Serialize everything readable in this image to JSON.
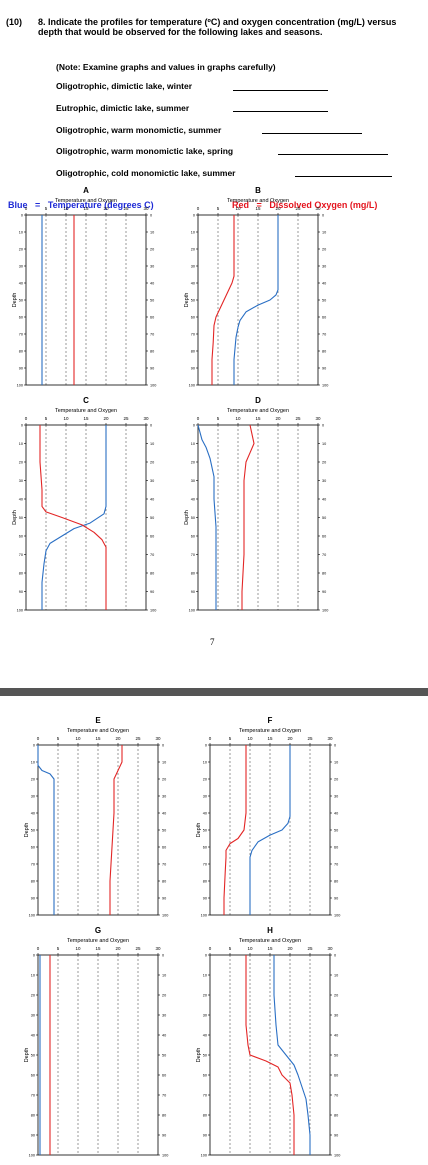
{
  "question": {
    "number": "(10)",
    "text": "8.  Indicate the profiles for temperature (ºC) and oxygen concentration (mg/L) versus depth that would be observed for the following lakes and seasons.",
    "note": "(Note: Examine graphs and values in graphs carefully)",
    "items": [
      "Oligotrophic, dimictic lake, winter",
      "Eutrophic, dimictic lake, summer",
      "Oligotrophic, warm monomictic, summer",
      "Oligotrophic, warm monomictic lake, spring",
      "Oligotrophic, cold monomictic lake, summer"
    ]
  },
  "legend": {
    "blue_label": "Blue",
    "blue_eq": "=",
    "blue_text": "Temperature (degrees C)",
    "red_label": "Red",
    "red_eq": "=",
    "red_text": "Dissolved Oxygen (mg/L)"
  },
  "page_number": "7",
  "colors": {
    "temperature": "#2a6fc4",
    "oxygen": "#e32626",
    "legend_blue": "#1f2bd6",
    "legend_red": "#e4141e",
    "separator": "#555555"
  },
  "chart_data": [
    {
      "letter": "A",
      "type": "line",
      "title": "Temperature and Oxygen",
      "ylabel": "Depth",
      "xlim": [
        0,
        30
      ],
      "ylim": [
        100,
        0
      ],
      "xticks": [
        0,
        5,
        10,
        15,
        20,
        25,
        30
      ],
      "yticks": [
        0,
        10,
        20,
        30,
        40,
        50,
        60,
        70,
        80,
        90,
        100
      ],
      "grid": "dashed vertical",
      "series": [
        {
          "var": "temperature",
          "points": [
            [
              4,
              0
            ],
            [
              4,
              100
            ]
          ]
        },
        {
          "var": "oxygen",
          "points": [
            [
              12,
              0
            ],
            [
              12,
              100
            ]
          ]
        }
      ]
    },
    {
      "letter": "B",
      "type": "line",
      "title": "Temperature and Oxygen",
      "ylabel": "Depth",
      "xlim": [
        0,
        30
      ],
      "ylim": [
        100,
        0
      ],
      "xticks": [
        0,
        5,
        10,
        15,
        20,
        25,
        30
      ],
      "yticks": [
        0,
        10,
        20,
        30,
        40,
        50,
        60,
        70,
        80,
        90,
        100
      ],
      "grid": "dashed vertical",
      "series": [
        {
          "var": "temperature",
          "points": [
            [
              20,
              0
            ],
            [
              20,
              44
            ],
            [
              19.5,
              47
            ],
            [
              18,
              50
            ],
            [
              15,
              53
            ],
            [
              12,
              57
            ],
            [
              10.5,
              62
            ],
            [
              10,
              66
            ],
            [
              9.5,
              72
            ],
            [
              9,
              85
            ],
            [
              9,
              100
            ]
          ]
        },
        {
          "var": "oxygen",
          "points": [
            [
              9,
              0
            ],
            [
              9,
              36
            ],
            [
              8.5,
              40
            ],
            [
              7.5,
              45
            ],
            [
              6.5,
              50
            ],
            [
              5.5,
              55
            ],
            [
              4.5,
              60
            ],
            [
              4,
              65
            ],
            [
              3.8,
              75
            ],
            [
              3.5,
              85
            ],
            [
              3.5,
              100
            ]
          ]
        }
      ]
    },
    {
      "letter": "C",
      "type": "line",
      "title": "Temperature and Oxygen",
      "ylabel": "Depth",
      "xlim": [
        0,
        30
      ],
      "ylim": [
        100,
        0
      ],
      "xticks": [
        0,
        5,
        10,
        15,
        20,
        25,
        30
      ],
      "yticks": [
        0,
        10,
        20,
        30,
        40,
        50,
        60,
        70,
        80,
        90,
        100
      ],
      "grid": "dashed vertical",
      "series": [
        {
          "var": "temperature",
          "points": [
            [
              20,
              0
            ],
            [
              20,
              44
            ],
            [
              19.5,
              48
            ],
            [
              16,
              53
            ],
            [
              12,
              56
            ],
            [
              9,
              60
            ],
            [
              6,
              64
            ],
            [
              5,
              68
            ],
            [
              4.5,
              75
            ],
            [
              4,
              85
            ],
            [
              4,
              100
            ]
          ]
        },
        {
          "var": "oxygen",
          "points": [
            [
              3.5,
              0
            ],
            [
              3.5,
              20
            ],
            [
              4,
              35
            ],
            [
              4,
              44
            ],
            [
              5,
              47
            ],
            [
              9,
              50
            ],
            [
              14,
              54
            ],
            [
              17,
              58
            ],
            [
              19,
              62
            ],
            [
              20,
              66
            ],
            [
              20,
              100
            ]
          ]
        }
      ]
    },
    {
      "letter": "D",
      "type": "line",
      "title": "Temperature and Oxygen",
      "ylabel": "Depth",
      "xlim": [
        0,
        30
      ],
      "ylim": [
        100,
        0
      ],
      "xticks": [
        0,
        5,
        10,
        15,
        20,
        25,
        30
      ],
      "yticks": [
        0,
        10,
        20,
        30,
        40,
        50,
        60,
        70,
        80,
        90,
        100
      ],
      "grid": "dashed vertical",
      "series": [
        {
          "var": "temperature",
          "points": [
            [
              0,
              0
            ],
            [
              1,
              8
            ],
            [
              2,
              12
            ],
            [
              3,
              18
            ],
            [
              4,
              28
            ],
            [
              4,
              40
            ],
            [
              4.5,
              55
            ],
            [
              4.5,
              75
            ],
            [
              4.5,
              100
            ]
          ]
        },
        {
          "var": "oxygen",
          "points": [
            [
              13,
              0
            ],
            [
              13.5,
              5
            ],
            [
              14,
              10
            ],
            [
              13,
              15
            ],
            [
              12,
              20
            ],
            [
              11.5,
              30
            ],
            [
              11.5,
              50
            ],
            [
              11.5,
              70
            ],
            [
              11,
              90
            ],
            [
              11,
              100
            ]
          ]
        }
      ]
    },
    {
      "letter": "E",
      "type": "line",
      "title": "Temperature and Oxygen",
      "ylabel": "Depth",
      "xlim": [
        0,
        30
      ],
      "ylim": [
        100,
        0
      ],
      "xticks": [
        0,
        5,
        10,
        15,
        20,
        25,
        30
      ],
      "yticks": [
        0,
        10,
        20,
        30,
        40,
        50,
        60,
        70,
        80,
        90,
        100
      ],
      "grid": "dashed vertical",
      "series": [
        {
          "var": "temperature",
          "points": [
            [
              0,
              0
            ],
            [
              0,
              12
            ],
            [
              1,
              15
            ],
            [
              3,
              17
            ],
            [
              4,
              20
            ],
            [
              4,
              40
            ],
            [
              4,
              60
            ],
            [
              4,
              75
            ],
            [
              4,
              100
            ]
          ]
        },
        {
          "var": "oxygen",
          "points": [
            [
              21,
              0
            ],
            [
              21,
              10
            ],
            [
              20,
              15
            ],
            [
              19,
              20
            ],
            [
              19,
              40
            ],
            [
              18.5,
              60
            ],
            [
              18,
              80
            ],
            [
              18,
              100
            ]
          ]
        }
      ]
    },
    {
      "letter": "F",
      "type": "line",
      "title": "Temperature and Oxygen",
      "ylabel": "Depth",
      "xlim": [
        0,
        30
      ],
      "ylim": [
        100,
        0
      ],
      "xticks": [
        0,
        5,
        10,
        15,
        20,
        25,
        30
      ],
      "yticks": [
        0,
        10,
        20,
        30,
        40,
        50,
        60,
        70,
        80,
        90,
        100
      ],
      "grid": "dashed vertical",
      "series": [
        {
          "var": "temperature",
          "points": [
            [
              20,
              0
            ],
            [
              20,
              42
            ],
            [
              19.5,
              46
            ],
            [
              18,
              50
            ],
            [
              15,
              53
            ],
            [
              12,
              57
            ],
            [
              10.5,
              62
            ],
            [
              10,
              66
            ],
            [
              10,
              80
            ],
            [
              10,
              100
            ]
          ]
        },
        {
          "var": "oxygen",
          "points": [
            [
              9,
              0
            ],
            [
              9,
              40
            ],
            [
              8.5,
              50
            ],
            [
              7,
              55
            ],
            [
              5,
              58
            ],
            [
              4,
              62
            ],
            [
              4,
              66
            ],
            [
              3.8,
              75
            ],
            [
              3.5,
              90
            ],
            [
              3.5,
              100
            ]
          ]
        }
      ]
    },
    {
      "letter": "G",
      "type": "line",
      "title": "Temperature and Oxygen",
      "ylabel": "Depth",
      "xlim": [
        0,
        30
      ],
      "ylim": [
        100,
        0
      ],
      "xticks": [
        0,
        5,
        10,
        15,
        20,
        25,
        30
      ],
      "yticks": [
        0,
        10,
        20,
        30,
        40,
        50,
        60,
        70,
        80,
        90,
        100
      ],
      "grid": "dashed vertical",
      "series": [
        {
          "var": "temperature",
          "points": [
            [
              0.5,
              0
            ],
            [
              0.5,
              100
            ]
          ]
        },
        {
          "var": "oxygen",
          "points": [
            [
              3,
              0
            ],
            [
              3,
              100
            ]
          ]
        }
      ]
    },
    {
      "letter": "H",
      "type": "line",
      "title": "Temperature and Oxygen",
      "ylabel": "Depth",
      "xlim": [
        0,
        30
      ],
      "ylim": [
        100,
        0
      ],
      "xticks": [
        0,
        5,
        10,
        15,
        20,
        25,
        30
      ],
      "yticks": [
        0,
        10,
        20,
        30,
        40,
        50,
        60,
        70,
        80,
        90,
        100
      ],
      "grid": "dashed vertical",
      "series": [
        {
          "var": "temperature",
          "points": [
            [
              16,
              0
            ],
            [
              16,
              20
            ],
            [
              16.5,
              35
            ],
            [
              17,
              45
            ],
            [
              19,
              50
            ],
            [
              21,
              55
            ],
            [
              22,
              60
            ],
            [
              23,
              66
            ],
            [
              24,
              72
            ],
            [
              24.5,
              80
            ],
            [
              25,
              90
            ],
            [
              25,
              100
            ]
          ]
        },
        {
          "var": "oxygen",
          "points": [
            [
              9,
              0
            ],
            [
              9,
              20
            ],
            [
              9,
              35
            ],
            [
              9.5,
              45
            ],
            [
              10,
              50
            ],
            [
              14,
              53
            ],
            [
              17,
              56
            ],
            [
              18,
              60
            ],
            [
              20,
              64
            ],
            [
              20.5,
              70
            ],
            [
              21,
              80
            ],
            [
              21,
              100
            ]
          ]
        }
      ]
    }
  ]
}
